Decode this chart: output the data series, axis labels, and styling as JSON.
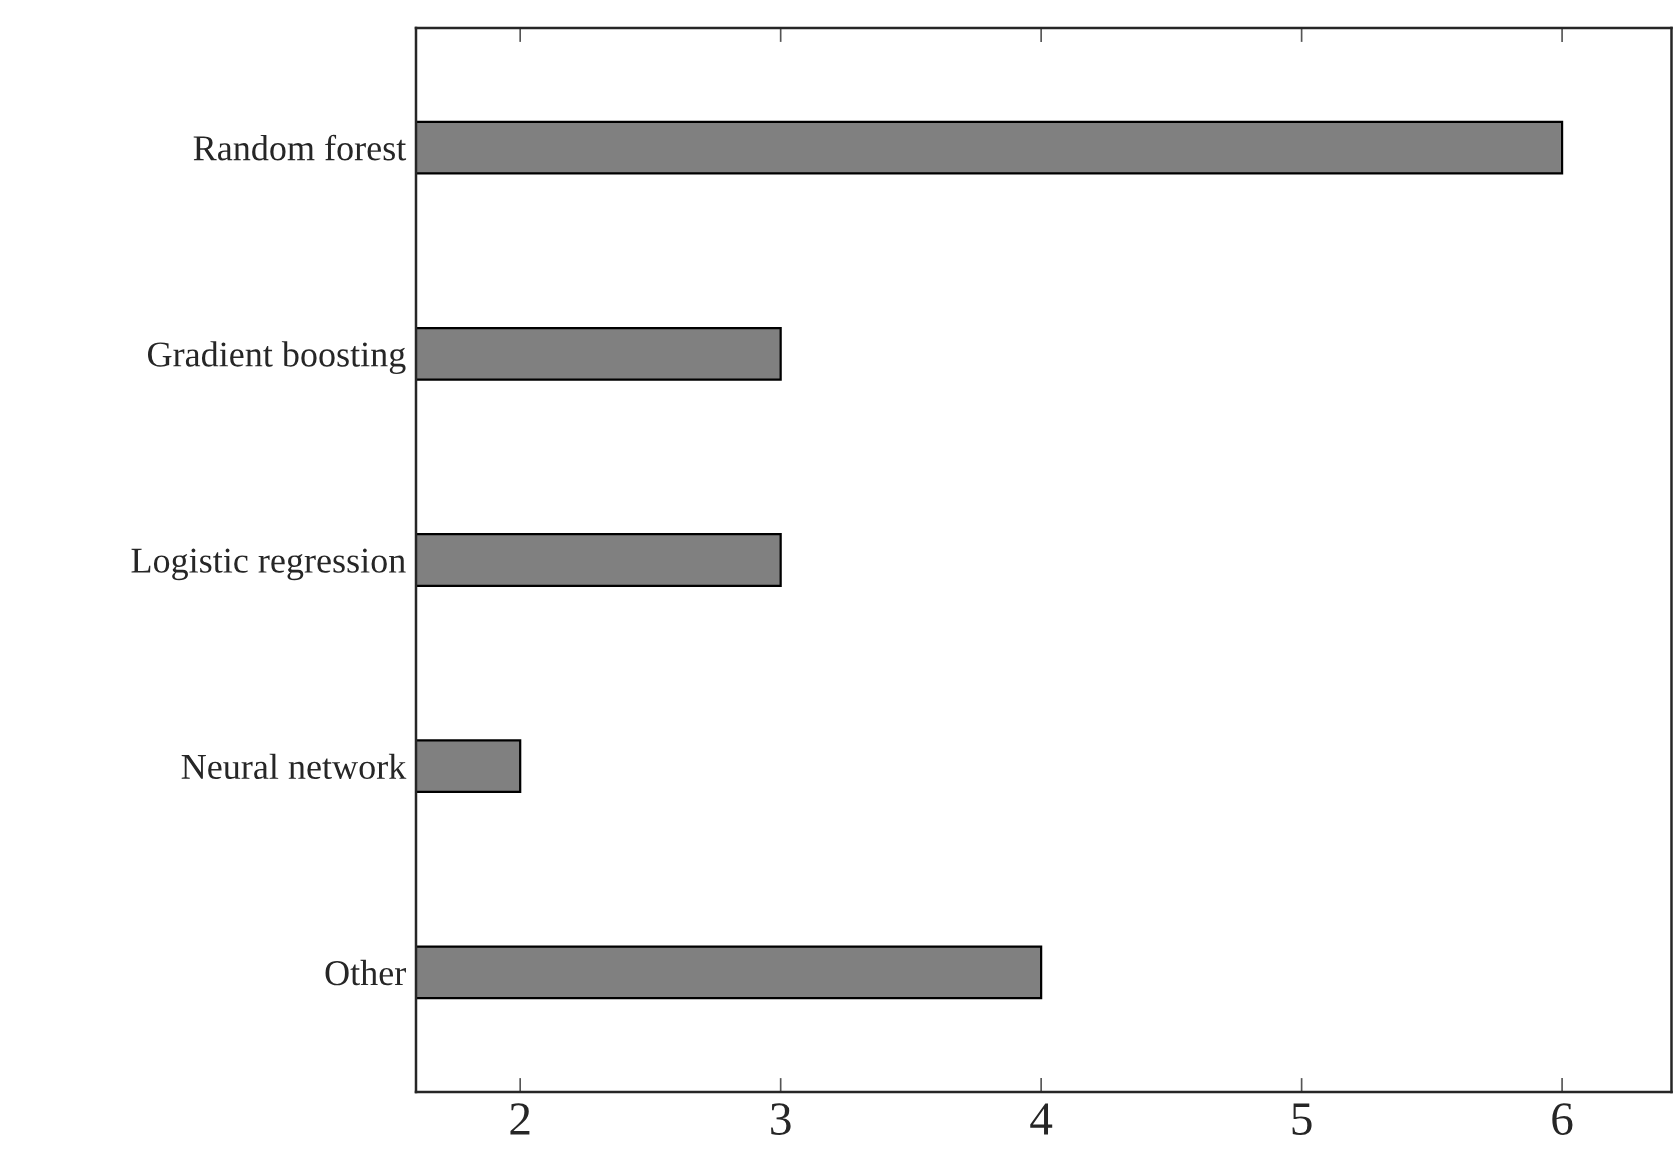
{
  "chart_data": {
    "type": "bar",
    "orientation": "horizontal",
    "categories": [
      "Random forest",
      "Gradient boosting",
      "Logistic regression",
      "Neural network",
      "Other"
    ],
    "values": [
      6,
      3,
      3,
      2,
      4
    ],
    "color": "#808080",
    "xlim": [
      1.6,
      6.42
    ],
    "xticks": [
      2,
      3,
      4,
      5,
      6
    ],
    "grid": false,
    "legend": false
  }
}
